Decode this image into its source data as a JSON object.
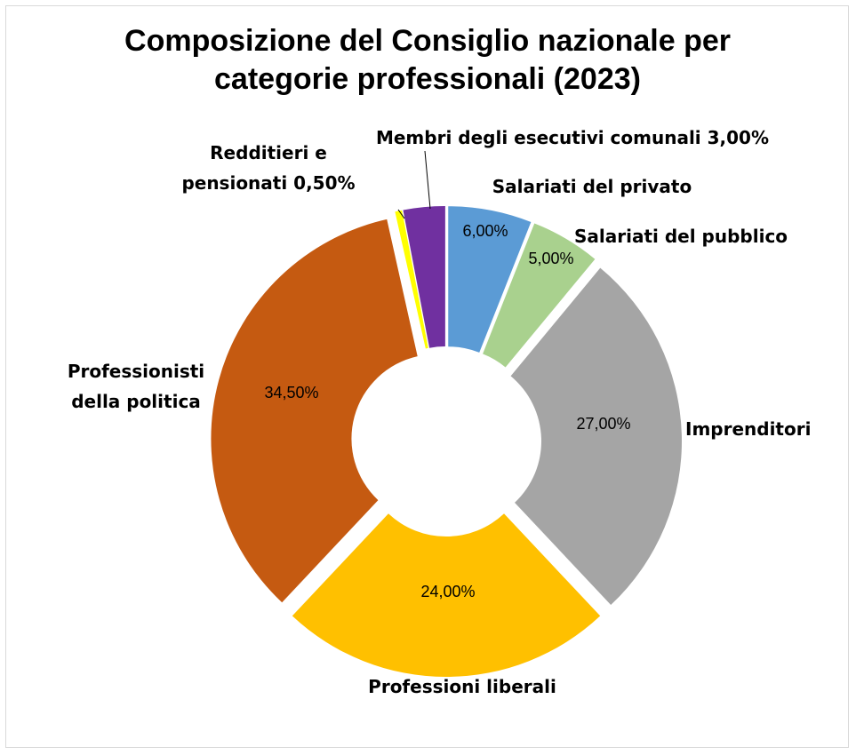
{
  "chart_data": {
    "type": "pie",
    "variant": "doughnut-exploded",
    "title": "Composizione del Consiglio nazionale per categorie professionali (2023)",
    "title_lines": [
      "Composizione del Consiglio nazionale per",
      "categorie professionali (2023)"
    ],
    "legend": "none",
    "slices": [
      {
        "label": "Salariati del privato",
        "value": 6.0,
        "value_label": "6,00%",
        "color": "#5B9BD5",
        "label_lines": [
          "Salariati del privato"
        ]
      },
      {
        "label": "Salariati del pubblico",
        "value": 5.0,
        "value_label": "5,00%",
        "color": "#A9D18E",
        "label_lines": [
          "Salariati del pubblico"
        ]
      },
      {
        "label": "Imprenditori",
        "value": 27.0,
        "value_label": "27,00%",
        "color": "#A5A5A5",
        "label_lines": [
          "Imprenditori"
        ]
      },
      {
        "label": "Professioni liberali",
        "value": 24.0,
        "value_label": "24,00%",
        "color": "#FFC000",
        "label_lines": [
          "Professioni liberali"
        ]
      },
      {
        "label": "Professionisti della politica",
        "value": 34.5,
        "value_label": "34,50%",
        "color": "#C55A11",
        "label_lines": [
          "Professionisti",
          "della politica"
        ]
      },
      {
        "label": "Redditieri e pensionati",
        "value": 0.5,
        "value_label": "0,50%",
        "color": "#FFFF00",
        "label_lines": [
          "Redditieri e",
          "pensionati 0,50%"
        ]
      },
      {
        "label": "Membri degli esecutivi comunali",
        "value": 3.0,
        "value_label": "3,00%",
        "color": "#7030A0",
        "label_lines": [
          "Membri degli esecutivi comunali 3,00%"
        ]
      }
    ]
  }
}
